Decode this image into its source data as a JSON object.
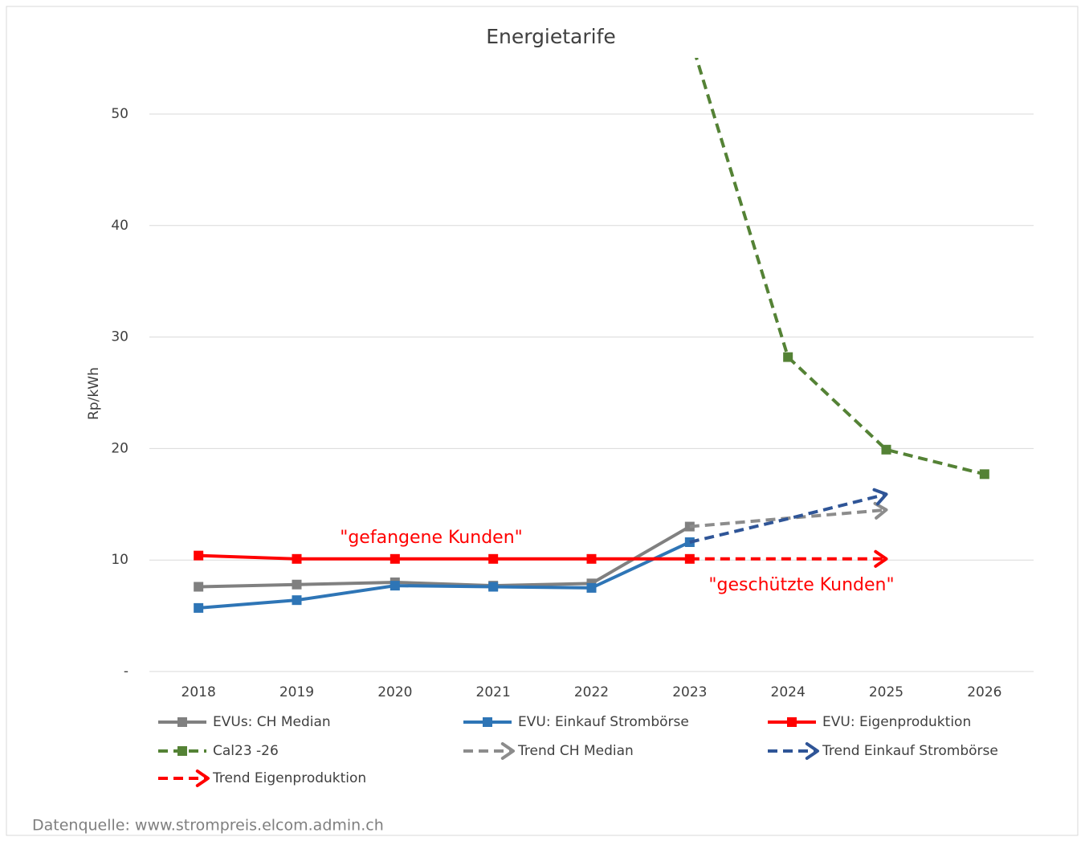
{
  "chart_data": {
    "type": "line",
    "title": "Energietarife",
    "y_label": "Rp/kWh",
    "source": "Datenquelle: www.strompreis.elcom.admin.ch",
    "annotations": [
      "\"gefangene Kunden\"",
      "\"geschützte Kunden\""
    ],
    "annotation_color": "#ff0000",
    "categories": [
      "2018",
      "2019",
      "2020",
      "2021",
      "2022",
      "2023",
      "2024",
      "2025",
      "2026"
    ],
    "ylim": [
      0,
      55
    ],
    "yticks": [
      {
        "value": 0,
        "label": "-"
      },
      10,
      20,
      30,
      40,
      50
    ],
    "grid": true,
    "series": [
      {
        "name": "EVUs: CH Median",
        "color": "#808080",
        "line_style": "solid",
        "marker": "square",
        "arrow": false,
        "values": [
          7.6,
          7.8,
          8.0,
          7.7,
          7.9,
          13.0,
          null,
          null,
          null
        ]
      },
      {
        "name": "EVU: Einkauf Strombörse",
        "color": "#2e75b6",
        "line_style": "solid",
        "marker": "square",
        "arrow": false,
        "values": [
          5.7,
          6.4,
          7.7,
          7.6,
          7.5,
          11.6,
          null,
          null,
          null
        ]
      },
      {
        "name": "EVU: Eigenproduktion",
        "color": "#ff0000",
        "line_style": "solid",
        "marker": "square",
        "arrow": false,
        "values": [
          10.4,
          10.1,
          10.1,
          10.1,
          10.1,
          10.1,
          null,
          null,
          null
        ]
      },
      {
        "name": "Cal23 -26",
        "color": "#548235",
        "line_style": "dashed",
        "marker": "square",
        "arrow": false,
        "values": [
          null,
          null,
          null,
          null,
          null,
          57,
          28.2,
          19.9,
          17.7
        ]
      },
      {
        "name": "Trend CH Median",
        "color": "#8c8c8c",
        "line_style": "dashed",
        "marker": "none",
        "arrow": true,
        "values": [
          null,
          null,
          null,
          null,
          null,
          13.0,
          null,
          14.5,
          null
        ]
      },
      {
        "name": "Trend Einkauf Strombörse",
        "color": "#2f5597",
        "line_style": "dashed",
        "marker": "none",
        "arrow": true,
        "values": [
          null,
          null,
          null,
          null,
          null,
          11.6,
          13.7,
          15.9,
          null
        ]
      },
      {
        "name": "Trend Eigenproduktion",
        "color": "#ff0000",
        "line_style": "dashed",
        "marker": "none",
        "arrow": true,
        "values": [
          null,
          null,
          null,
          null,
          null,
          10.1,
          null,
          10.1,
          null
        ]
      }
    ]
  }
}
